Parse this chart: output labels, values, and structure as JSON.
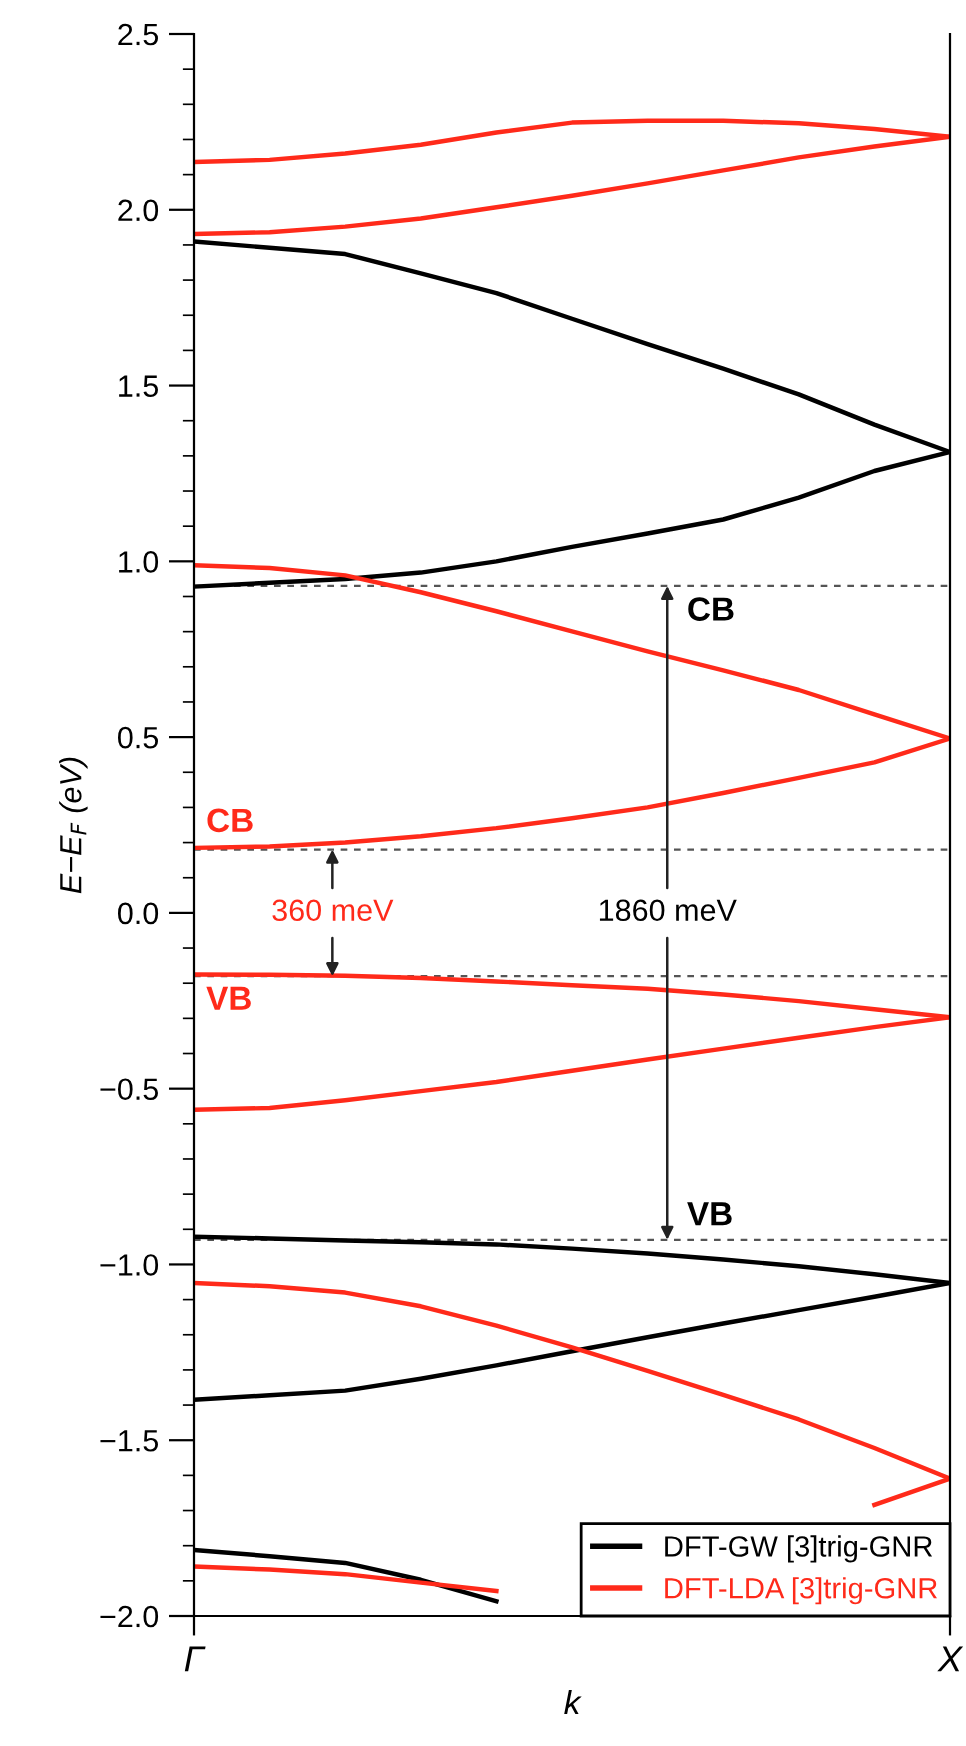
{
  "chart_data": {
    "type": "line",
    "xlabel": "k",
    "ylabel": "E−E$_{F}$ (eV)",
    "categories": [
      "Γ",
      null,
      null,
      null,
      null,
      null,
      null,
      null,
      null,
      null,
      "X"
    ],
    "ylim": [
      -2.0,
      2.5
    ],
    "yticks": [
      {
        "value": 2.5,
        "label": "2.5"
      },
      {
        "value": 2.4,
        "label": null
      },
      {
        "value": 2.3,
        "label": null
      },
      {
        "value": 2.2,
        "label": null
      },
      {
        "value": 2.1,
        "label": null
      },
      {
        "value": 2.0,
        "label": "2.0"
      },
      {
        "value": 1.9,
        "label": null
      },
      {
        "value": 1.8,
        "label": null
      },
      {
        "value": 1.7,
        "label": null
      },
      {
        "value": 1.6,
        "label": null
      },
      {
        "value": 1.5,
        "label": "1.5"
      },
      {
        "value": 1.4,
        "label": null
      },
      {
        "value": 1.3,
        "label": null
      },
      {
        "value": 1.2,
        "label": null
      },
      {
        "value": 1.1,
        "label": null
      },
      {
        "value": 1.0,
        "label": "1.0"
      },
      {
        "value": 0.9,
        "label": null
      },
      {
        "value": 0.8,
        "label": null
      },
      {
        "value": 0.7,
        "label": null
      },
      {
        "value": 0.6,
        "label": null
      },
      {
        "value": 0.5,
        "label": "0.5"
      },
      {
        "value": 0.4,
        "label": null
      },
      {
        "value": 0.3,
        "label": null
      },
      {
        "value": 0.2,
        "label": null
      },
      {
        "value": 0.1,
        "label": null
      },
      {
        "value": 0.0,
        "label": "0.0"
      },
      {
        "value": -0.1,
        "label": null
      },
      {
        "value": -0.2,
        "label": null
      },
      {
        "value": -0.3,
        "label": null
      },
      {
        "value": -0.4,
        "label": null
      },
      {
        "value": -0.5,
        "label": "−0.5"
      },
      {
        "value": -0.6,
        "label": null
      },
      {
        "value": -0.7,
        "label": null
      },
      {
        "value": -0.8,
        "label": null
      },
      {
        "value": -0.9,
        "label": null
      },
      {
        "value": -1.0,
        "label": "−1.0"
      },
      {
        "value": -1.1,
        "label": null
      },
      {
        "value": -1.2,
        "label": null
      },
      {
        "value": -1.3,
        "label": null
      },
      {
        "value": -1.4,
        "label": null
      },
      {
        "value": -1.5,
        "label": "−1.5"
      },
      {
        "value": -1.6,
        "label": null
      },
      {
        "value": -1.7,
        "label": null
      },
      {
        "value": -1.8,
        "label": null
      },
      {
        "value": -1.9,
        "label": null
      },
      {
        "value": -2.0,
        "label": "−2.0"
      }
    ],
    "grid": false,
    "legend": "bottom right",
    "marker": "none",
    "line_style": "solid",
    "series": [
      {
        "name": "DFT-GW [3]trig-GNR",
        "color": "#000000",
        "values": [
          1.91,
          1.892,
          1.874,
          1.819,
          1.763,
          1.69,
          1.618,
          1.548,
          1.475,
          1.389,
          1.311
        ]
      },
      {
        "color": "#000000",
        "values": [
          0.928,
          0.939,
          0.95,
          0.968,
          1.0,
          1.041,
          1.079,
          1.119,
          1.181,
          1.257,
          1.311
        ]
      },
      {
        "color": "#000000",
        "values": [
          -0.921,
          -0.926,
          -0.932,
          -0.937,
          -0.943,
          -0.955,
          -0.969,
          -0.986,
          -1.005,
          -1.028,
          -1.053
        ]
      },
      {
        "color": "#000000",
        "values": [
          -1.385,
          -1.372,
          -1.359,
          -1.325,
          -1.287,
          -1.247,
          -1.207,
          -1.168,
          -1.13,
          -1.092,
          -1.053
        ]
      },
      {
        "color": "#000000",
        "values": [
          -1.812,
          -1.83,
          -1.849,
          -1.897,
          -1.958,
          null,
          null,
          null,
          null,
          null,
          null
        ]
      },
      {
        "name": "DFT-LDA [3]trig-GNR",
        "color": "#ff2a1a",
        "values": [
          2.136,
          2.142,
          2.16,
          2.185,
          2.22,
          2.248,
          2.253,
          2.253,
          2.246,
          2.23,
          2.208
        ]
      },
      {
        "color": "#ff2a1a",
        "values": [
          1.931,
          1.936,
          1.952,
          1.975,
          2.007,
          2.04,
          2.075,
          2.112,
          2.149,
          2.18,
          2.208
        ]
      },
      {
        "color": "#ff2a1a",
        "values": [
          0.989,
          0.981,
          0.96,
          0.912,
          0.858,
          0.801,
          0.744,
          0.69,
          0.634,
          0.565,
          0.496
        ]
      },
      {
        "color": "#ff2a1a",
        "values": [
          0.185,
          0.189,
          0.2,
          0.218,
          0.241,
          0.269,
          0.3,
          0.341,
          0.384,
          0.428,
          0.496
        ]
      },
      {
        "color": "#ff2a1a",
        "values": [
          -0.175,
          -0.176,
          -0.179,
          -0.185,
          -0.195,
          -0.206,
          -0.216,
          -0.232,
          -0.251,
          -0.274,
          -0.297
        ]
      },
      {
        "color": "#ff2a1a",
        "values": [
          -0.56,
          -0.555,
          -0.533,
          -0.507,
          -0.481,
          -0.449,
          -0.417,
          -0.386,
          -0.355,
          -0.325,
          -0.297
        ]
      },
      {
        "color": "#ff2a1a",
        "values": [
          -1.053,
          -1.062,
          -1.08,
          -1.119,
          -1.174,
          -1.236,
          -1.303,
          -1.371,
          -1.441,
          -1.522,
          -1.609
        ]
      },
      {
        "color": "#ff2a1a",
        "values": [
          -1.859,
          -1.868,
          -1.881,
          -1.905,
          -1.929,
          null,
          null,
          null,
          null,
          -1.684,
          -1.609
        ]
      }
    ],
    "ref_lines": [
      {
        "axis": "y",
        "value": 0.18,
        "color": "#555555",
        "line_style": "dashed"
      },
      {
        "axis": "y",
        "value": -0.18,
        "color": "#555555",
        "line_style": "dashed"
      },
      {
        "axis": "y",
        "value": 0.93,
        "color": "#555555",
        "line_style": "dashed"
      },
      {
        "axis": "y",
        "value": -0.93,
        "color": "#555555",
        "line_style": "dashed"
      }
    ],
    "annotations": [
      "CB",
      "VB",
      "CB",
      "VB",
      {
        "text": "360 meV",
        "y": 0.18
      },
      {
        "text": "1860 meV",
        "y": 0.93
      }
    ]
  }
}
